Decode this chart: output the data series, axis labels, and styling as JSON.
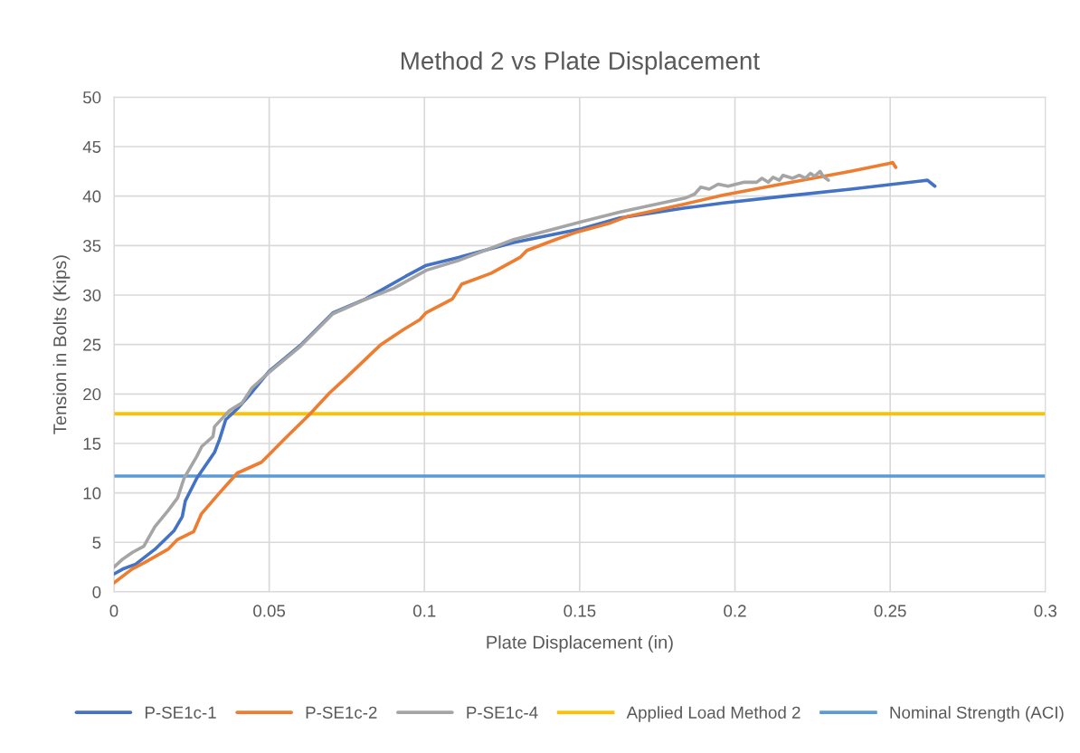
{
  "chart_data": {
    "type": "line",
    "title": "Method 2 vs Plate Displacement",
    "xlabel": "Plate Displacement (in)",
    "ylabel": "Tension in Bolts (Kips)",
    "xlim": [
      0,
      0.3
    ],
    "xticks": [
      {
        "value": 0,
        "label": "0"
      },
      0.05,
      0.1,
      0.15,
      0.2,
      0.25,
      0.3
    ],
    "ylim": [
      0,
      50
    ],
    "yticks": [
      0,
      5,
      10,
      15,
      20,
      25,
      30,
      35,
      40,
      45,
      50
    ],
    "grid": true,
    "legend": "bottom",
    "marker": "none",
    "line_style": "solid",
    "series": [
      {
        "name": "P-SE1c-1",
        "color": "#4472c4",
        "x": [
          0,
          0.0028,
          0.007,
          0.0132,
          0.0194,
          0.022,
          0.023,
          0.0267,
          0.0324,
          0.034,
          0.036,
          0.0397,
          0.0434,
          0.05,
          0.06,
          0.0705,
          0.081,
          0.094,
          0.1006,
          0.111,
          0.1287,
          0.1506,
          0.163,
          0.184,
          0.1963,
          0.2164,
          0.2373,
          0.262,
          0.2644
        ],
        "values": [
          1.8,
          2.3,
          2.8,
          4.3,
          6.2,
          7.6,
          9.2,
          11.5,
          14.1,
          15.4,
          17.4,
          18.5,
          19.8,
          22.3,
          24.9,
          28.2,
          29.6,
          31.9,
          33.0,
          33.8,
          35.3,
          36.7,
          37.8,
          38.8,
          39.3,
          40.0,
          40.7,
          41.6,
          41.0
        ]
      },
      {
        "name": "P-SE1c-2",
        "color": "#ed7d31",
        "x": [
          0,
          0.0058,
          0.0101,
          0.0174,
          0.0205,
          0.0257,
          0.0282,
          0.034,
          0.0397,
          0.0475,
          0.0507,
          0.0548,
          0.0632,
          0.0694,
          0.0746,
          0.086,
          0.0932,
          0.0985,
          0.1005,
          0.109,
          0.112,
          0.1215,
          0.1308,
          0.133,
          0.1422,
          0.1485,
          0.16,
          0.165,
          0.1838,
          0.1963,
          0.2164,
          0.2373,
          0.2498,
          0.2508,
          0.2518
        ],
        "values": [
          0.9,
          2.3,
          3.0,
          4.3,
          5.3,
          6.1,
          7.9,
          10.0,
          12.0,
          13.1,
          14.1,
          15.4,
          18.0,
          20.1,
          21.6,
          25.0,
          26.5,
          27.5,
          28.2,
          29.6,
          31.1,
          32.2,
          33.8,
          34.5,
          35.6,
          36.3,
          37.3,
          37.9,
          39.2,
          40.1,
          41.3,
          42.5,
          43.3,
          43.4,
          42.9
        ]
      },
      {
        "name": "P-SE1c-4",
        "color": "#a5a5a5",
        "x": [
          0,
          0.0028,
          0.006,
          0.0096,
          0.0132,
          0.0174,
          0.0205,
          0.0226,
          0.0267,
          0.0283,
          0.0319,
          0.0324,
          0.0371,
          0.0413,
          0.0444,
          0.05,
          0.06,
          0.0705,
          0.0798,
          0.0902,
          0.1006,
          0.111,
          0.1287,
          0.1506,
          0.163,
          0.184,
          0.187,
          0.189,
          0.1917,
          0.1946,
          0.1978,
          0.203,
          0.207,
          0.2087,
          0.2107,
          0.2123,
          0.2143,
          0.2155,
          0.2186,
          0.2207,
          0.2227,
          0.2243,
          0.2257,
          0.2274,
          0.2284,
          0.2301
        ],
        "values": [
          2.5,
          3.3,
          4.0,
          4.6,
          6.6,
          8.2,
          9.5,
          11.5,
          13.7,
          14.7,
          15.7,
          16.7,
          18.3,
          19.1,
          20.6,
          22.2,
          24.8,
          28.1,
          29.4,
          30.7,
          32.5,
          33.5,
          35.6,
          37.4,
          38.4,
          39.8,
          40.2,
          40.9,
          40.7,
          41.2,
          41.0,
          41.4,
          41.4,
          41.8,
          41.4,
          41.9,
          41.6,
          42.1,
          41.8,
          42.1,
          41.8,
          42.3,
          42.0,
          42.5,
          42.0,
          41.6
        ]
      }
    ],
    "ref_lines": [
      {
        "axis": "y",
        "value": 18,
        "label": "Applied Load Method 2",
        "color": "#ffc000",
        "line_style": "solid"
      },
      {
        "axis": "y",
        "value": 11.7,
        "label": "Nominal Strength (ACI)",
        "color": "#5b9bd5",
        "line_style": "solid"
      }
    ]
  }
}
